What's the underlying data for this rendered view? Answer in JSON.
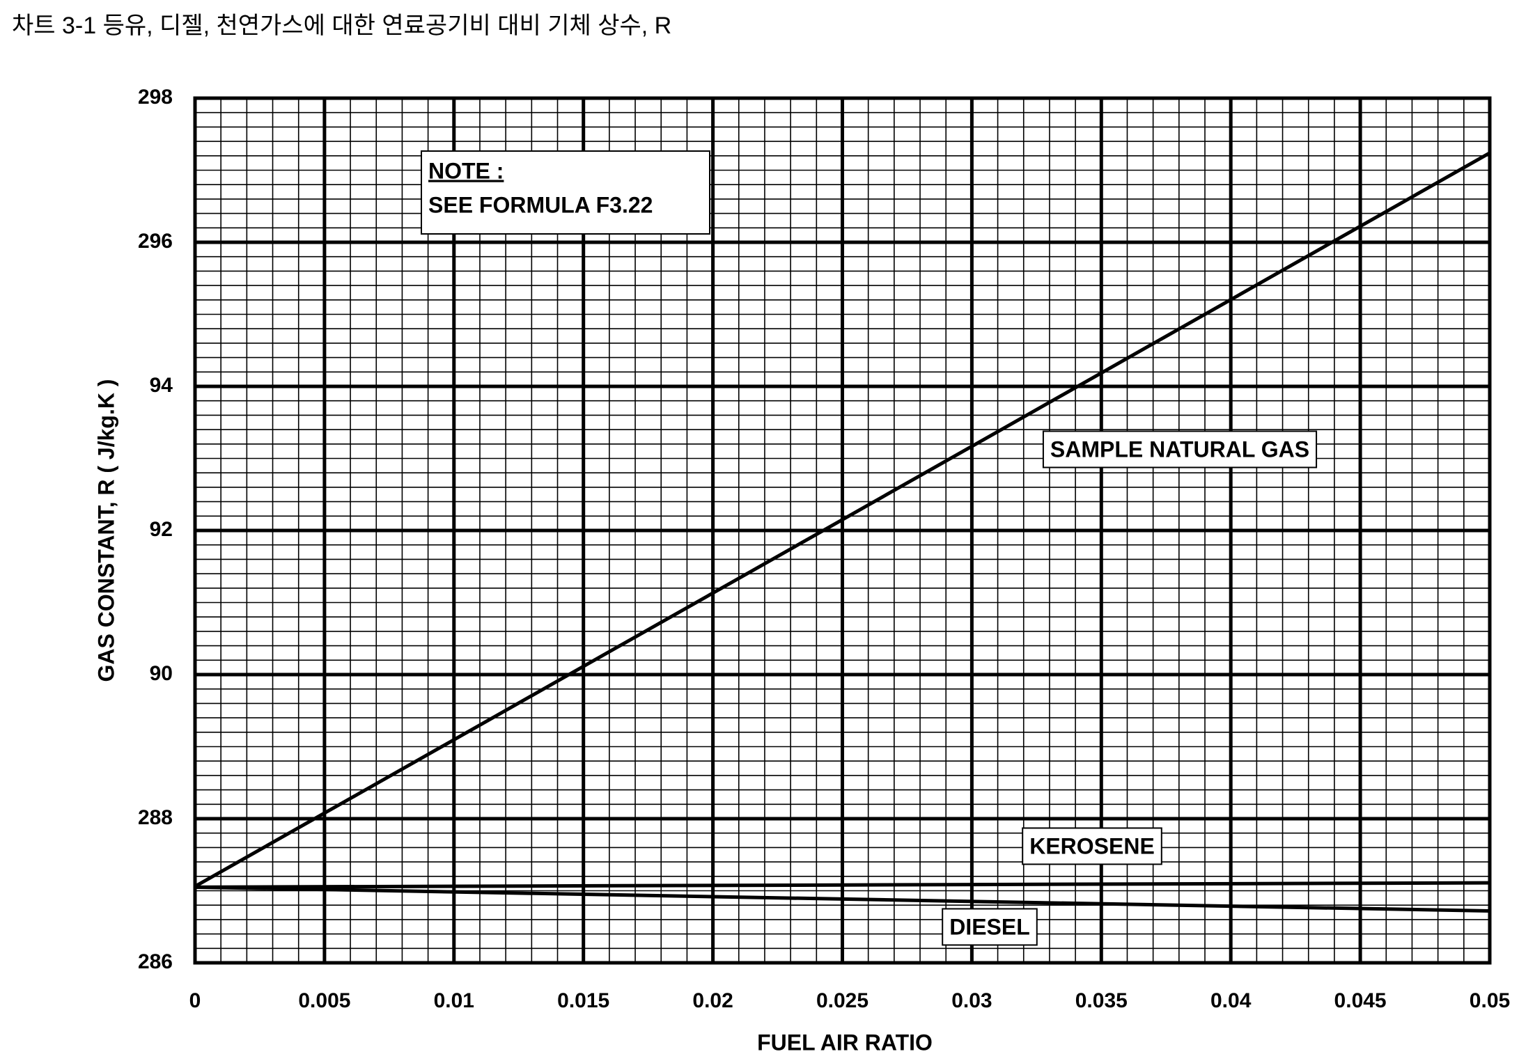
{
  "chart_data": {
    "type": "line",
    "title": "차트 3-1 등유, 디젤, 천연가스에 대한 연료공기비 대비 기체 상수, R",
    "x_label": "FUEL AIR RATIO",
    "y_label": "GAS CONSTANT, R ( J/kg.K )",
    "annotations": [
      "NOTE :",
      "SEE FORMULA F3.22"
    ],
    "x": [
      0,
      0.05
    ],
    "series": [
      {
        "name": "SAMPLE NATURAL GAS",
        "color": "#000000",
        "values": [
          287.06,
          297.24
        ]
      },
      {
        "name": "KEROSENE",
        "color": "#000000",
        "values": [
          287.05,
          287.11
        ]
      },
      {
        "name": "DIESEL",
        "color": "#000000",
        "values": [
          287.05,
          286.72
        ]
      }
    ],
    "xlim": [
      0,
      0.05
    ],
    "xticks": [
      0,
      0.005,
      0.01,
      0.015,
      0.02,
      0.025,
      0.03,
      0.035,
      0.04,
      0.045,
      0.05
    ],
    "ylim": [
      286,
      298
    ],
    "yticks": [
      286,
      288,
      {
        "value": 290,
        "label": "90"
      },
      {
        "value": 292,
        "label": "92"
      },
      {
        "value": 294,
        "label": "94"
      },
      296,
      298
    ],
    "grid": true
  }
}
